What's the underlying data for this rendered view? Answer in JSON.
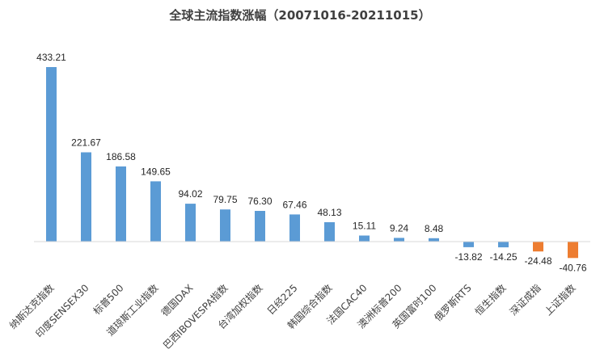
{
  "chart_data": {
    "type": "bar",
    "title": "全球主流指数涨幅（20071016-20211015）",
    "xlabel": "",
    "ylabel": "",
    "ylim": [
      -60,
      460
    ],
    "grid": false,
    "legend": "none",
    "colors": {
      "positive": "#5B9BD5",
      "negative_a": "#5B9BD5",
      "negative_b": "#ED7D31",
      "axis": "#D9D9D9"
    },
    "categories": [
      "纳斯达克指数",
      "印度SENSEX30",
      "标普500",
      "道琼斯工业指数",
      "德国DAX",
      "巴西IBOVESPA指数",
      "台湾加权指数",
      "日经225",
      "韩国综合指数",
      "法国CAC40",
      "澳洲标普200",
      "英国富时100",
      "俄罗斯RTS",
      "恒生指数",
      "深证成指",
      "上证指数"
    ],
    "values": [
      433.21,
      221.67,
      186.58,
      149.65,
      94.02,
      79.75,
      76.3,
      67.46,
      48.13,
      15.11,
      9.24,
      8.48,
      -13.82,
      -14.25,
      -24.48,
      -40.76
    ],
    "labels": [
      "433.21",
      "221.67",
      "186.58",
      "149.65",
      "94.02",
      "79.75",
      "76.30",
      "67.46",
      "48.13",
      "15.11",
      "9.24",
      "8.48",
      "-13.82",
      "-14.25",
      "-24.48",
      "-40.76"
    ],
    "bar_colors": [
      "#5B9BD5",
      "#5B9BD5",
      "#5B9BD5",
      "#5B9BD5",
      "#5B9BD5",
      "#5B9BD5",
      "#5B9BD5",
      "#5B9BD5",
      "#5B9BD5",
      "#5B9BD5",
      "#5B9BD5",
      "#5B9BD5",
      "#5B9BD5",
      "#5B9BD5",
      "#ED7D31",
      "#ED7D31"
    ]
  }
}
